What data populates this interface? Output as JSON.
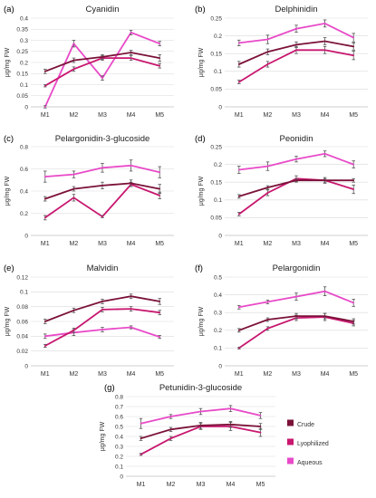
{
  "colors": {
    "Crude": "#7b1138",
    "Lyophilized": "#c8176f",
    "Aqueous": "#e84ac8"
  },
  "chart_data": [
    {
      "type": "line",
      "panel_label": "(a)",
      "title": "Cyanidin",
      "ylabel": "μg/mg FW",
      "categories": [
        "M1",
        "M2",
        "M3",
        "M4",
        "M5"
      ],
      "yticks": [
        "0",
        "0.05",
        "0.1",
        "0.15",
        "0.2",
        "0.25",
        "0.3",
        "0.35",
        "0.4"
      ],
      "ylim": [
        0,
        0.4
      ],
      "series": [
        {
          "name": "Crude",
          "values": [
            0.16,
            0.21,
            0.225,
            0.245,
            0.22
          ],
          "err": [
            0.01,
            0.01,
            0.01,
            0.01,
            0.015
          ]
        },
        {
          "name": "Lyophilized",
          "values": [
            0.095,
            0.17,
            0.22,
            0.22,
            0.185
          ],
          "err": [
            0.005,
            0.01,
            0.01,
            0.01,
            0.01
          ]
        },
        {
          "name": "Aqueous",
          "values": [
            0.0,
            0.285,
            0.13,
            0.335,
            0.285
          ],
          "err": [
            0.005,
            0.015,
            0.01,
            0.01,
            0.01
          ]
        }
      ]
    },
    {
      "type": "line",
      "panel_label": "(b)",
      "title": "Delphinidin",
      "ylabel": "μg/mg FW",
      "categories": [
        "M1",
        "M2",
        "M3",
        "M4",
        "M5"
      ],
      "yticks": [
        "0",
        "0.05",
        "0.1",
        "0.15",
        "0.2",
        "0.25"
      ],
      "ylim": [
        0,
        0.25
      ],
      "series": [
        {
          "name": "Crude",
          "values": [
            0.12,
            0.155,
            0.175,
            0.185,
            0.17
          ],
          "err": [
            0.008,
            0.008,
            0.008,
            0.01,
            0.01
          ]
        },
        {
          "name": "Lyophilized",
          "values": [
            0.07,
            0.12,
            0.16,
            0.16,
            0.145
          ],
          "err": [
            0.005,
            0.008,
            0.01,
            0.01,
            0.012
          ]
        },
        {
          "name": "Aqueous",
          "values": [
            0.18,
            0.19,
            0.22,
            0.235,
            0.195
          ],
          "err": [
            0.008,
            0.012,
            0.01,
            0.01,
            0.012
          ]
        }
      ]
    },
    {
      "type": "line",
      "panel_label": "(c)",
      "title": "Pelargonidin-3-glucoside",
      "ylabel": "μg/mg FW",
      "categories": [
        "M1",
        "M2",
        "M3",
        "M4",
        "M5"
      ],
      "yticks": [
        "0",
        "0.2",
        "0.4",
        "0.6",
        "0.8"
      ],
      "ylim": [
        0,
        0.8
      ],
      "series": [
        {
          "name": "Crude",
          "values": [
            0.33,
            0.42,
            0.45,
            0.47,
            0.42
          ],
          "err": [
            0.02,
            0.02,
            0.03,
            0.03,
            0.04
          ]
        },
        {
          "name": "Lyophilized",
          "values": [
            0.16,
            0.34,
            0.17,
            0.46,
            0.36
          ],
          "err": [
            0.02,
            0.03,
            0.01,
            0.02,
            0.03
          ]
        },
        {
          "name": "Aqueous",
          "values": [
            0.53,
            0.55,
            0.61,
            0.63,
            0.57
          ],
          "err": [
            0.05,
            0.03,
            0.04,
            0.05,
            0.05
          ]
        }
      ]
    },
    {
      "type": "line",
      "panel_label": "(d)",
      "title": "Peonidin",
      "ylabel": "μg/mg FW",
      "categories": [
        "M1",
        "M2",
        "M3",
        "M4",
        "M5"
      ],
      "yticks": [
        "0",
        "0.05",
        "0.1",
        "0.15",
        "0.2",
        "0.25"
      ],
      "ylim": [
        0,
        0.25
      ],
      "series": [
        {
          "name": "Crude",
          "values": [
            0.11,
            0.135,
            0.155,
            0.155,
            0.155
          ],
          "err": [
            0.005,
            0.005,
            0.005,
            0.005,
            0.005
          ]
        },
        {
          "name": "Lyophilized",
          "values": [
            0.06,
            0.12,
            0.16,
            0.155,
            0.13
          ],
          "err": [
            0.005,
            0.008,
            0.008,
            0.008,
            0.012
          ]
        },
        {
          "name": "Aqueous",
          "values": [
            0.185,
            0.195,
            0.215,
            0.23,
            0.2
          ],
          "err": [
            0.01,
            0.012,
            0.008,
            0.008,
            0.01
          ]
        }
      ]
    },
    {
      "type": "line",
      "panel_label": "(e)",
      "title": "Malvidin",
      "ylabel": "μg/mg FW",
      "categories": [
        "M1",
        "M2",
        "M3",
        "M4",
        "M5"
      ],
      "yticks": [
        "0",
        "0.02",
        "0.04",
        "0.06",
        "0.08",
        "0.1",
        "0.12"
      ],
      "ylim": [
        0,
        0.12
      ],
      "series": [
        {
          "name": "Crude",
          "values": [
            0.06,
            0.075,
            0.087,
            0.094,
            0.087
          ],
          "err": [
            0.003,
            0.003,
            0.003,
            0.003,
            0.004
          ]
        },
        {
          "name": "Lyophilized",
          "values": [
            0.027,
            0.048,
            0.076,
            0.077,
            0.072
          ],
          "err": [
            0.002,
            0.003,
            0.003,
            0.003,
            0.003
          ]
        },
        {
          "name": "Aqueous",
          "values": [
            0.04,
            0.045,
            0.049,
            0.052,
            0.039
          ],
          "err": [
            0.003,
            0.004,
            0.003,
            0.002,
            0.002
          ]
        }
      ]
    },
    {
      "type": "line",
      "panel_label": "(f)",
      "title": "Pelargonidin",
      "ylabel": "μg/mg FW",
      "categories": [
        "M1",
        "M2",
        "M3",
        "M4",
        "M5"
      ],
      "yticks": [
        "0",
        "0.1",
        "0.2",
        "0.3",
        "0.4",
        "0.5"
      ],
      "ylim": [
        0,
        0.5
      ],
      "series": [
        {
          "name": "Crude",
          "values": [
            0.2,
            0.26,
            0.28,
            0.28,
            0.25
          ],
          "err": [
            0.01,
            0.01,
            0.015,
            0.015,
            0.015
          ]
        },
        {
          "name": "Lyophilized",
          "values": [
            0.1,
            0.21,
            0.27,
            0.275,
            0.24
          ],
          "err": [
            0.005,
            0.01,
            0.015,
            0.02,
            0.015
          ]
        },
        {
          "name": "Aqueous",
          "values": [
            0.33,
            0.36,
            0.39,
            0.42,
            0.355
          ],
          "err": [
            0.01,
            0.01,
            0.02,
            0.025,
            0.02
          ]
        }
      ]
    },
    {
      "type": "line",
      "panel_label": "(g)",
      "title": "Petunidin-3-glucoside",
      "ylabel": "μg/mg FW",
      "categories": [
        "M1",
        "M2",
        "M3",
        "M4",
        "M5"
      ],
      "yticks": [
        "0",
        "0.1",
        "0.2",
        "0.3",
        "0.4",
        "0.5",
        "0.6",
        "0.7",
        "0.8"
      ],
      "ylim": [
        0,
        0.8
      ],
      "series": [
        {
          "name": "Crude",
          "values": [
            0.38,
            0.47,
            0.51,
            0.52,
            0.5
          ],
          "err": [
            0.02,
            0.02,
            0.03,
            0.03,
            0.03
          ]
        },
        {
          "name": "Lyophilized",
          "values": [
            0.22,
            0.38,
            0.5,
            0.5,
            0.44
          ],
          "err": [
            0.01,
            0.02,
            0.03,
            0.04,
            0.04
          ]
        },
        {
          "name": "Aqueous",
          "values": [
            0.53,
            0.6,
            0.65,
            0.68,
            0.61
          ],
          "err": [
            0.05,
            0.02,
            0.03,
            0.03,
            0.03
          ]
        }
      ]
    }
  ],
  "legend": [
    "Crude",
    "Lyophilized",
    "Aqueous"
  ]
}
